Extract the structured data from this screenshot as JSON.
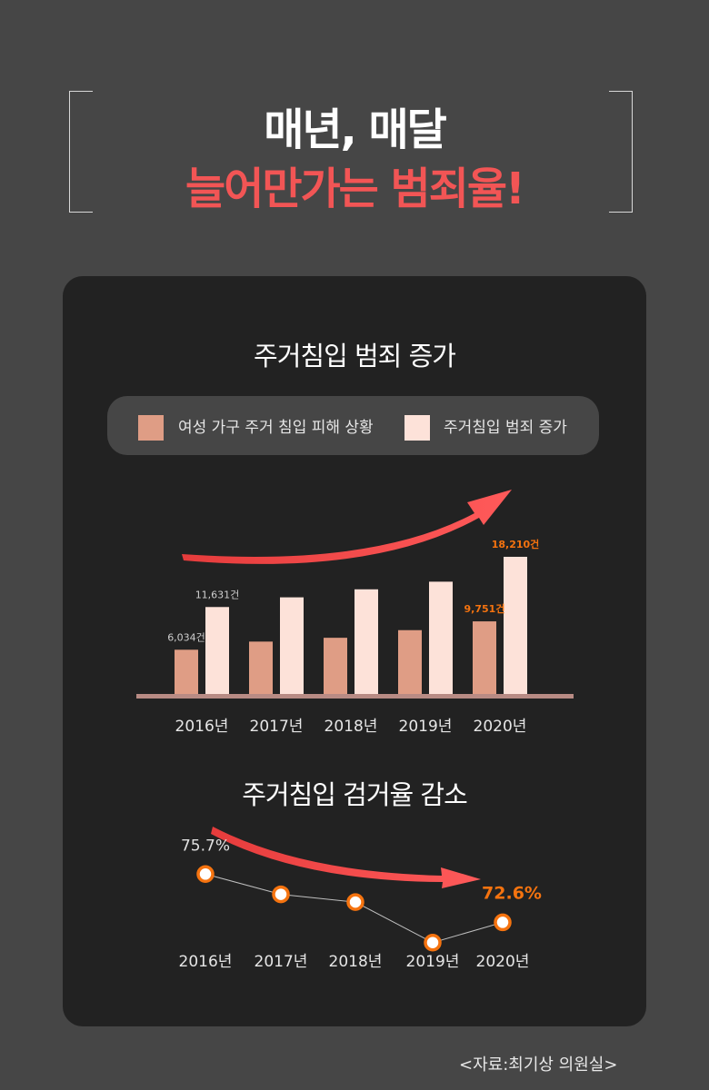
{
  "header": {
    "line1": "매년, 매달",
    "line2": "늘어만가는 범죄율!",
    "line1_color": "#ffffff",
    "line2_color": "#f25555"
  },
  "chart_data": [
    {
      "type": "bar",
      "title": "주거침입 범죄 증가",
      "categories": [
        "2016년",
        "2017년",
        "2018년",
        "2019년",
        "2020년"
      ],
      "series": [
        {
          "name": "여성 가구 주거 침입 피해 상황",
          "color": "#df9d85",
          "values": [
            6034,
            7100,
            7600,
            8600,
            9751
          ]
        },
        {
          "name": "주거침입 범죄 증가",
          "color": "#fde2d9",
          "values": [
            11631,
            12900,
            13950,
            14950,
            18210
          ]
        }
      ],
      "data_labels": [
        {
          "series": 0,
          "index": 0,
          "text": "6,034건",
          "color": "#cfcfcf"
        },
        {
          "series": 1,
          "index": 0,
          "text": "11,631건",
          "color": "#cfcfcf"
        },
        {
          "series": 0,
          "index": 4,
          "text": "9,751건",
          "color": "#f5730f"
        },
        {
          "series": 1,
          "index": 4,
          "text": "18,210건",
          "color": "#f5730f"
        }
      ],
      "ylim": [
        0,
        18210
      ],
      "legend_position": "top",
      "trend_arrow": "up",
      "grid": false
    },
    {
      "type": "line",
      "title": "주거침입 검거율 감소",
      "categories": [
        "2016년",
        "2017년",
        "2018년",
        "2019년",
        "2020년"
      ],
      "values": [
        75.7,
        74.4,
        73.9,
        71.3,
        72.6
      ],
      "unit": "%",
      "data_labels": [
        {
          "index": 0,
          "text": "75.7%",
          "color": "#e0e0e0"
        },
        {
          "index": 4,
          "text": "72.6%",
          "color": "#f5730f"
        }
      ],
      "ylim": [
        70,
        77
      ],
      "marker_color": "#f5730f",
      "trend_arrow": "down",
      "grid": false
    }
  ],
  "source": "<자료:최기상 의원실>"
}
